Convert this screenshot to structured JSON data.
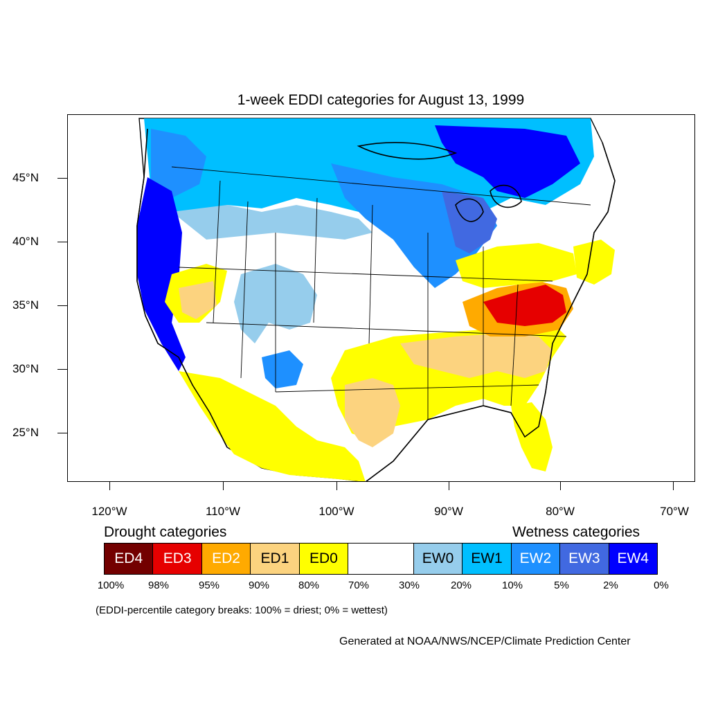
{
  "title": "1-week EDDI categories for August 13, 1999",
  "axes": {
    "lat_labels": [
      "45°N",
      "40°N",
      "35°N",
      "30°N",
      "25°N"
    ],
    "lon_labels": [
      "120°W",
      "110°W",
      "100°W",
      "90°W",
      "80°W",
      "70°W"
    ]
  },
  "legend": {
    "drought_heading": "Drought categories",
    "wetness_heading": "Wetness categories",
    "categories": [
      {
        "label": "ED4",
        "color": "#730000",
        "text_color": "#ffffff"
      },
      {
        "label": "ED3",
        "color": "#e60000",
        "text_color": "#ffffff"
      },
      {
        "label": "ED2",
        "color": "#ffaa00",
        "text_color": "#ffffff"
      },
      {
        "label": "ED1",
        "color": "#fcd37f",
        "text_color": "#000000"
      },
      {
        "label": "ED0",
        "color": "#ffff00",
        "text_color": "#000000"
      },
      {
        "label": "",
        "color": "#ffffff",
        "text_color": "#000000"
      },
      {
        "label": "EW0",
        "color": "#96cdec",
        "text_color": "#000000"
      },
      {
        "label": "EW1",
        "color": "#00bfff",
        "text_color": "#000000"
      },
      {
        "label": "EW2",
        "color": "#1e90ff",
        "text_color": "#ffffff"
      },
      {
        "label": "EW3",
        "color": "#4169e1",
        "text_color": "#ffffff"
      },
      {
        "label": "EW4",
        "color": "#0000ff",
        "text_color": "#ffffff"
      }
    ],
    "percentiles": [
      "100%",
      "98%",
      "95%",
      "90%",
      "80%",
      "70%",
      "30%",
      "20%",
      "10%",
      "5%",
      "2%",
      "0%"
    ]
  },
  "note": "(EDDI-percentile category breaks: 100% = driest; 0% = wettest)",
  "credit": "Generated at NOAA/NWS/NCEP/Climate Prediction Center"
}
